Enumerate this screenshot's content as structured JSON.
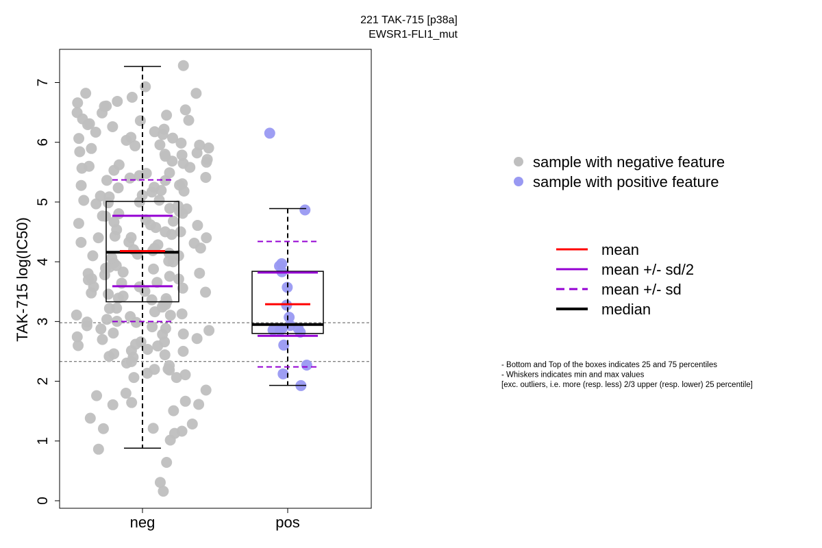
{
  "chart_data": {
    "type": "box",
    "title_line1": "221 TAK-715 [p38a]",
    "title_line2": "EWSR1-FLI1_mut",
    "ylabel": "TAK-715 log(IC50)",
    "ylim": [
      0,
      7.3
    ],
    "yticks": [
      0,
      1,
      2,
      3,
      4,
      5,
      6,
      7
    ],
    "categories": [
      "neg",
      "pos"
    ],
    "reference_lines": [
      2.98,
      2.33
    ],
    "groups": [
      {
        "category": "neg",
        "whisker_low": 0.88,
        "q1": 3.33,
        "median": 4.16,
        "q3": 5.01,
        "whisker_high": 7.27,
        "mean": 4.18,
        "mean_minus_half_sd": 3.59,
        "mean_plus_half_sd": 4.77,
        "mean_minus_sd": 3.0,
        "mean_plus_sd": 5.37,
        "points": [
          0.15,
          0.33,
          0.65,
          0.88,
          1.03,
          1.12,
          1.15,
          1.2,
          1.22,
          1.3,
          1.38,
          1.5,
          1.6,
          1.63,
          1.64,
          1.65,
          1.75,
          1.8,
          1.85,
          2.05,
          2.08,
          2.1,
          2.15,
          2.17,
          2.18,
          2.2,
          2.25,
          2.3,
          2.35,
          2.38,
          2.4,
          2.42,
          2.45,
          2.5,
          2.5,
          2.55,
          2.6,
          2.6,
          2.62,
          2.65,
          2.68,
          2.7,
          2.72,
          2.75,
          2.78,
          2.8,
          2.82,
          2.85,
          2.88,
          2.9,
          2.92,
          2.95,
          2.98,
          3.0,
          3.02,
          3.05,
          3.08,
          3.1,
          3.12,
          3.15,
          3.18,
          3.2,
          3.22,
          3.25,
          3.28,
          3.3,
          3.32,
          3.35,
          3.38,
          3.4,
          3.42,
          3.45,
          3.48,
          3.5,
          3.52,
          3.55,
          3.58,
          3.6,
          3.62,
          3.65,
          3.68,
          3.7,
          3.72,
          3.75,
          3.78,
          3.8,
          3.82,
          3.85,
          3.88,
          3.9,
          3.92,
          3.95,
          3.98,
          4.0,
          4.02,
          4.05,
          4.08,
          4.1,
          4.12,
          4.15,
          4.18,
          4.2,
          4.22,
          4.25,
          4.28,
          4.3,
          4.32,
          4.35,
          4.38,
          4.4,
          4.42,
          4.45,
          4.48,
          4.5,
          4.52,
          4.55,
          4.58,
          4.6,
          4.62,
          4.65,
          4.68,
          4.7,
          4.72,
          4.75,
          4.78,
          4.8,
          4.82,
          4.85,
          4.88,
          4.9,
          4.92,
          4.95,
          4.98,
          5.0,
          5.02,
          5.05,
          5.08,
          5.1,
          5.12,
          5.15,
          5.18,
          5.2,
          5.22,
          5.25,
          5.28,
          5.3,
          5.32,
          5.35,
          5.38,
          5.4,
          5.42,
          5.45,
          5.48,
          5.5,
          5.52,
          5.55,
          5.58,
          5.6,
          5.62,
          5.65,
          5.68,
          5.7,
          5.72,
          5.75,
          5.78,
          5.8,
          5.82,
          5.85,
          5.88,
          5.9,
          5.92,
          5.95,
          5.98,
          6.0,
          6.02,
          6.05,
          6.08,
          6.1,
          6.12,
          6.15,
          6.18,
          6.2,
          6.25,
          6.28,
          6.3,
          6.35,
          6.38,
          6.4,
          6.45,
          6.48,
          6.5,
          6.55,
          6.6,
          6.62,
          6.65,
          6.68,
          6.75,
          6.8,
          6.8,
          6.95,
          7.27
        ]
      },
      {
        "category": "pos",
        "whisker_low": 1.93,
        "q1": 2.8,
        "median": 2.95,
        "q3": 3.84,
        "whisker_high": 4.89,
        "mean": 3.29,
        "mean_minus_half_sd": 2.76,
        "mean_plus_half_sd": 3.82,
        "mean_minus_sd": 2.24,
        "mean_plus_sd": 4.34,
        "points": [
          6.14,
          4.88,
          3.99,
          3.91,
          3.84,
          3.57,
          3.28,
          3.05,
          2.95,
          2.9,
          2.88,
          2.86,
          2.85,
          2.82,
          2.62,
          2.27,
          2.12,
          1.93
        ]
      }
    ],
    "legend_points": [
      {
        "label": "sample with negative feature",
        "color": "#bfbfbf"
      },
      {
        "label": "sample with positive feature",
        "color": "#9999f2"
      }
    ],
    "legend_lines": [
      {
        "label": "mean",
        "color": "#ff0000",
        "style": "solid"
      },
      {
        "label": "mean +/- sd/2",
        "color": "#9400d3",
        "style": "solid"
      },
      {
        "label": "mean +/- sd",
        "color": "#9400d3",
        "style": "dashed"
      },
      {
        "label": "median",
        "color": "#000000",
        "style": "solid-thick"
      }
    ],
    "notes": [
      "- Bottom and Top of the boxes indicates 25 and 75 percentiles",
      "- Whiskers indicates min and max values",
      "[exc. outliers, i.e. more (resp. less) 2/3 upper (resp. lower) 25 percentile]"
    ]
  }
}
